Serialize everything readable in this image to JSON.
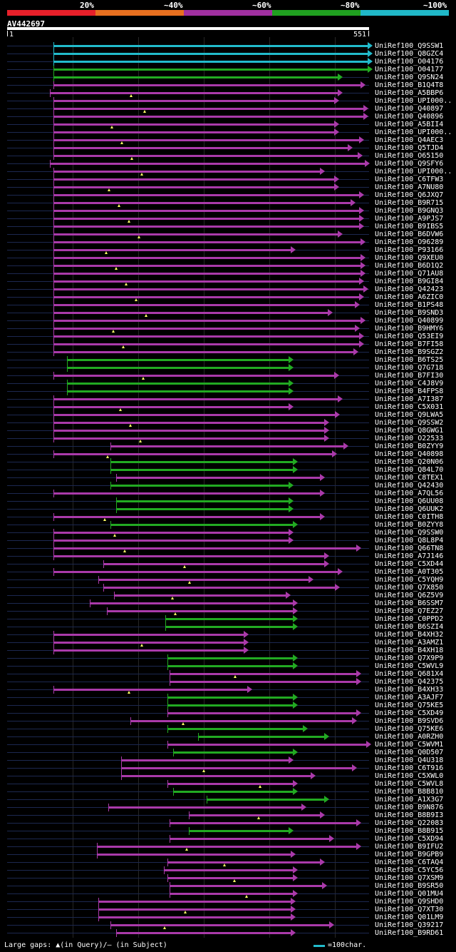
{
  "legend": {
    "labels": [
      "20%",
      "~40%",
      "~60%",
      "~80%",
      "~100%"
    ],
    "colors": [
      "#e8202a",
      "#e87020",
      "#a030a0",
      "#20a020",
      "#20b8c8"
    ]
  },
  "query": {
    "id": "AV442697",
    "start": "1",
    "end": "551"
  },
  "footer": {
    "gaps_text": "Large gaps: ▲(in Query)/– (in Subject)",
    "scale_text": "=100char."
  },
  "hits": [
    {
      "label": "UniRef100_Q9SSW1",
      "color": "cyan",
      "s": 75,
      "e": 516
    },
    {
      "label": "UniRef100_Q8GZC4",
      "color": "cyan",
      "s": 75,
      "e": 516
    },
    {
      "label": "UniRef100_O04176",
      "color": "cyan",
      "s": 75,
      "e": 516
    },
    {
      "label": "UniRef100_O04177",
      "color": "green",
      "s": 75,
      "e": 516
    },
    {
      "label": "UniRef100_Q9SN24",
      "color": "green",
      "s": 75,
      "e": 474
    },
    {
      "label": "UniRef100_B1Q4T8",
      "color": "purple",
      "s": 75,
      "e": 506
    },
    {
      "label": "UniRef100_A5BBP6",
      "color": "purple",
      "s": 70,
      "e": 474
    },
    {
      "label": "UniRef100_UPI000..",
      "color": "purple",
      "s": 75,
      "e": 469
    },
    {
      "label": "UniRef100_Q40897",
      "color": "purple",
      "s": 75,
      "e": 510
    },
    {
      "label": "UniRef100_Q40896",
      "color": "purple",
      "s": 75,
      "e": 510
    },
    {
      "label": "UniRef100_A5BII4",
      "color": "purple",
      "s": 75,
      "e": 469
    },
    {
      "label": "UniRef100_UPI000..",
      "color": "purple",
      "s": 75,
      "e": 469
    },
    {
      "label": "UniRef100_Q4AEC3",
      "color": "purple",
      "s": 75,
      "e": 504
    },
    {
      "label": "UniRef100_Q5TJD4",
      "color": "purple",
      "s": 75,
      "e": 488
    },
    {
      "label": "UniRef100_O65150",
      "color": "purple",
      "s": 75,
      "e": 502
    },
    {
      "label": "UniRef100_Q9SFY6",
      "color": "purple",
      "s": 70,
      "e": 512
    },
    {
      "label": "UniRef100_UPI000..",
      "color": "purple",
      "s": 75,
      "e": 449
    },
    {
      "label": "UniRef100_C6TFW3",
      "color": "purple",
      "s": 75,
      "e": 469
    },
    {
      "label": "UniRef100_A7NU80",
      "color": "purple",
      "s": 75,
      "e": 469
    },
    {
      "label": "UniRef100_Q6JXQ7",
      "color": "purple",
      "s": 75,
      "e": 504
    },
    {
      "label": "UniRef100_B9R715",
      "color": "purple",
      "s": 75,
      "e": 492
    },
    {
      "label": "UniRef100_B9GNQ3",
      "color": "purple",
      "s": 75,
      "e": 504
    },
    {
      "label": "UniRef100_A9PJS7",
      "color": "purple",
      "s": 75,
      "e": 504
    },
    {
      "label": "UniRef100_B9IBS5",
      "color": "purple",
      "s": 75,
      "e": 504
    },
    {
      "label": "UniRef100_B6DVW6",
      "color": "purple",
      "s": 75,
      "e": 474
    },
    {
      "label": "UniRef100_O96289",
      "color": "purple",
      "s": 75,
      "e": 506
    },
    {
      "label": "UniRef100_P93166",
      "color": "purple",
      "s": 75,
      "e": 408
    },
    {
      "label": "UniRef100_Q9XEU0",
      "color": "purple",
      "s": 75,
      "e": 506
    },
    {
      "label": "UniRef100_B6D1Q2",
      "color": "purple",
      "s": 75,
      "e": 506
    },
    {
      "label": "UniRef100_Q71AU8",
      "color": "purple",
      "s": 75,
      "e": 506
    },
    {
      "label": "UniRef100_B9GI84",
      "color": "purple",
      "s": 75,
      "e": 504
    },
    {
      "label": "UniRef100_Q42423",
      "color": "purple",
      "s": 75,
      "e": 510
    },
    {
      "label": "UniRef100_A6ZIC0",
      "color": "purple",
      "s": 75,
      "e": 504
    },
    {
      "label": "UniRef100_B1PS48",
      "color": "purple",
      "s": 75,
      "e": 498
    },
    {
      "label": "UniRef100_B9SND3",
      "color": "purple",
      "s": 75,
      "e": 460
    },
    {
      "label": "UniRef100_Q40899",
      "color": "purple",
      "s": 75,
      "e": 506
    },
    {
      "label": "UniRef100_B9HMY6",
      "color": "purple",
      "s": 75,
      "e": 498
    },
    {
      "label": "UniRef100_Q53EI9",
      "color": "purple",
      "s": 75,
      "e": 504
    },
    {
      "label": "UniRef100_B7FI58",
      "color": "purple",
      "s": 75,
      "e": 504
    },
    {
      "label": "UniRef100_B9SGZ2",
      "color": "purple",
      "s": 75,
      "e": 496
    },
    {
      "label": "UniRef100_B6TS25",
      "color": "green",
      "s": 94,
      "e": 405
    },
    {
      "label": "UniRef100_Q7G718",
      "color": "green",
      "s": 94,
      "e": 405
    },
    {
      "label": "UniRef100_B7FI30",
      "color": "purple",
      "s": 75,
      "e": 469
    },
    {
      "label": "UniRef100_C4J8V9",
      "color": "green",
      "s": 94,
      "e": 405
    },
    {
      "label": "UniRef100_B4FPS8",
      "color": "green",
      "s": 94,
      "e": 405
    },
    {
      "label": "UniRef100_A7I387",
      "color": "purple",
      "s": 75,
      "e": 474
    },
    {
      "label": "UniRef100_C5X031",
      "color": "purple",
      "s": 75,
      "e": 405
    },
    {
      "label": "UniRef100_Q9LWA5",
      "color": "purple",
      "s": 75,
      "e": 470
    },
    {
      "label": "UniRef100_Q9SSW2",
      "color": "purple",
      "s": 75,
      "e": 455
    },
    {
      "label": "UniRef100_Q8GWG1",
      "color": "purple",
      "s": 75,
      "e": 455
    },
    {
      "label": "UniRef100_O22533",
      "color": "purple",
      "s": 75,
      "e": 455
    },
    {
      "label": "UniRef100_B0ZYY9",
      "color": "purple",
      "s": 155,
      "e": 482
    },
    {
      "label": "UniRef100_Q40898",
      "color": "purple",
      "s": 75,
      "e": 466
    },
    {
      "label": "UniRef100_Q20N06",
      "color": "green",
      "s": 155,
      "e": 411
    },
    {
      "label": "UniRef100_Q84L70",
      "color": "green",
      "s": 155,
      "e": 411
    },
    {
      "label": "UniRef100_C8TEX1",
      "color": "purple",
      "s": 163,
      "e": 449
    },
    {
      "label": "UniRef100_Q42430",
      "color": "green",
      "s": 155,
      "e": 405
    },
    {
      "label": "UniRef100_A7QL56",
      "color": "purple",
      "s": 75,
      "e": 449
    },
    {
      "label": "UniRef100_Q6UU08",
      "color": "green",
      "s": 163,
      "e": 405
    },
    {
      "label": "UniRef100_Q6UUK2",
      "color": "green",
      "s": 163,
      "e": 405
    },
    {
      "label": "UniRef100_C0ITH8",
      "color": "purple",
      "s": 75,
      "e": 449
    },
    {
      "label": "UniRef100_B0ZYY8",
      "color": "green",
      "s": 155,
      "e": 411
    },
    {
      "label": "UniRef100_Q9SSW0",
      "color": "purple",
      "s": 75,
      "e": 405
    },
    {
      "label": "UniRef100_Q8L8P4",
      "color": "purple",
      "s": 75,
      "e": 405
    },
    {
      "label": "UniRef100_Q66TN8",
      "color": "purple",
      "s": 75,
      "e": 500
    },
    {
      "label": "UniRef100_A7J146",
      "color": "purple",
      "s": 75,
      "e": 455
    },
    {
      "label": "UniRef100_C5XD44",
      "color": "purple",
      "s": 145,
      "e": 455
    },
    {
      "label": "UniRef100_A0T305",
      "color": "purple",
      "s": 75,
      "e": 474
    },
    {
      "label": "UniRef100_C5YQH9",
      "color": "purple",
      "s": 138,
      "e": 433
    },
    {
      "label": "UniRef100_Q7X850",
      "color": "purple",
      "s": 145,
      "e": 470
    },
    {
      "label": "UniRef100_Q6Z5V9",
      "color": "purple",
      "s": 160,
      "e": 401
    },
    {
      "label": "UniRef100_B6SSM7",
      "color": "purple",
      "s": 126,
      "e": 411
    },
    {
      "label": "UniRef100_Q7EZ27",
      "color": "purple",
      "s": 150,
      "e": 411
    },
    {
      "label": "UniRef100_C0PPD2",
      "color": "green",
      "s": 232,
      "e": 411
    },
    {
      "label": "UniRef100_B6SZI4",
      "color": "green",
      "s": 232,
      "e": 411
    },
    {
      "label": "UniRef100_B4XH32",
      "color": "purple",
      "s": 75,
      "e": 342
    },
    {
      "label": "UniRef100_A3AMZ1",
      "color": "purple",
      "s": 75,
      "e": 342
    },
    {
      "label": "UniRef100_B4XH18",
      "color": "purple",
      "s": 75,
      "e": 342
    },
    {
      "label": "UniRef100_Q7X9P9",
      "color": "green",
      "s": 235,
      "e": 411
    },
    {
      "label": "UniRef100_C5WVL9",
      "color": "green",
      "s": 235,
      "e": 411
    },
    {
      "label": "UniRef100_Q681X4",
      "color": "purple",
      "s": 238,
      "e": 500
    },
    {
      "label": "UniRef100_Q42375",
      "color": "purple",
      "s": 238,
      "e": 500
    },
    {
      "label": "UniRef100_B4XH33",
      "color": "purple",
      "s": 75,
      "e": 347
    },
    {
      "label": "UniRef100_A3AJF7",
      "color": "green",
      "s": 235,
      "e": 411
    },
    {
      "label": "UniRef100_Q75KE5",
      "color": "green",
      "s": 235,
      "e": 411
    },
    {
      "label": "UniRef100_C5XD49",
      "color": "purple",
      "s": 235,
      "e": 500
    },
    {
      "label": "UniRef100_B9SVD6",
      "color": "purple",
      "s": 183,
      "e": 494
    },
    {
      "label": "UniRef100_Q75KE6",
      "color": "green",
      "s": 235,
      "e": 425
    },
    {
      "label": "UniRef100_A0RZH0",
      "color": "green",
      "s": 278,
      "e": 455
    },
    {
      "label": "UniRef100_C5WVM1",
      "color": "purple",
      "s": 235,
      "e": 514
    },
    {
      "label": "UniRef100_Q0D507",
      "color": "green",
      "s": 243,
      "e": 411
    },
    {
      "label": "UniRef100_Q4U318",
      "color": "purple",
      "s": 170,
      "e": 405
    },
    {
      "label": "UniRef100_C6T916",
      "color": "purple",
      "s": 170,
      "e": 494
    },
    {
      "label": "UniRef100_C5XWL0",
      "color": "purple",
      "s": 170,
      "e": 436
    },
    {
      "label": "UniRef100_C5WVL8",
      "color": "purple",
      "s": 235,
      "e": 411
    },
    {
      "label": "UniRef100_B8B810",
      "color": "green",
      "s": 243,
      "e": 411
    },
    {
      "label": "UniRef100_A1X3G7",
      "color": "green",
      "s": 290,
      "e": 455
    },
    {
      "label": "UniRef100_B9N876",
      "color": "purple",
      "s": 152,
      "e": 423
    },
    {
      "label": "UniRef100_B8B9I3",
      "color": "purple",
      "s": 265,
      "e": 449
    },
    {
      "label": "UniRef100_Q22083",
      "color": "purple",
      "s": 238,
      "e": 500
    },
    {
      "label": "UniRef100_B8B915",
      "color": "green",
      "s": 265,
      "e": 405
    },
    {
      "label": "UniRef100_C5XD94",
      "color": "purple",
      "s": 238,
      "e": 462
    },
    {
      "label": "UniRef100_B9IFU2",
      "color": "purple",
      "s": 136,
      "e": 500
    },
    {
      "label": "UniRef100_B9GPB9",
      "color": "purple",
      "s": 136,
      "e": 408
    },
    {
      "label": "UniRef100_C6TAQ4",
      "color": "purple",
      "s": 235,
      "e": 449
    },
    {
      "label": "UniRef100_C5YC56",
      "color": "purple",
      "s": 230,
      "e": 411
    },
    {
      "label": "UniRef100_Q7XSM9",
      "color": "purple",
      "s": 235,
      "e": 411
    },
    {
      "label": "UniRef100_B9SR50",
      "color": "purple",
      "s": 238,
      "e": 452
    },
    {
      "label": "UniRef100_Q01MU4",
      "color": "purple",
      "s": 238,
      "e": 411
    },
    {
      "label": "UniRef100_Q9SHD0",
      "color": "purple",
      "s": 138,
      "e": 408
    },
    {
      "label": "UniRef100_Q7XT30",
      "color": "purple",
      "s": 138,
      "e": 408
    },
    {
      "label": "UniRef100_Q01LM9",
      "color": "purple",
      "s": 138,
      "e": 408
    },
    {
      "label": "UniRef100_Q39217",
      "color": "purple",
      "s": 155,
      "e": 462
    },
    {
      "label": "UniRef100_B9RD61",
      "color": "purple",
      "s": 163,
      "e": 408
    }
  ]
}
